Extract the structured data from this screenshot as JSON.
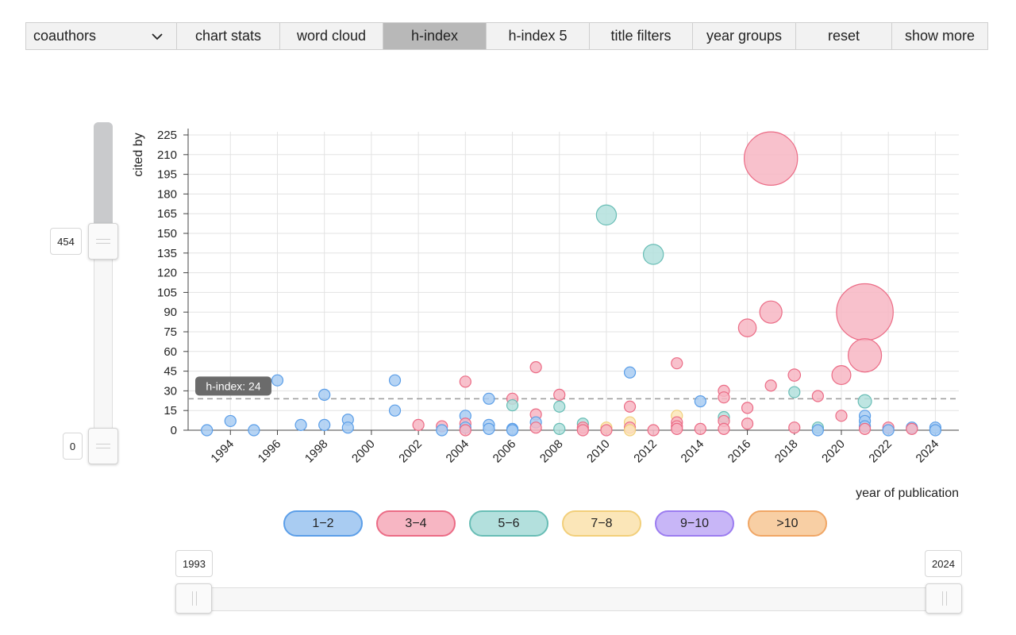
{
  "toolbar": {
    "select_value": "coauthors",
    "buttons": [
      {
        "label": "chart stats"
      },
      {
        "label": "word cloud"
      },
      {
        "label": "h-index",
        "active": true
      },
      {
        "label": "h-index 5"
      },
      {
        "label": "title filters"
      },
      {
        "label": "year groups"
      },
      {
        "label": "reset"
      },
      {
        "label": "show more"
      }
    ]
  },
  "y_slider": {
    "max_value": "454",
    "min_value": "0"
  },
  "x_slider": {
    "min_value": "1993",
    "max_value": "2024"
  },
  "legend": {
    "items": [
      {
        "label": "1−2",
        "fill": "#a9ccf2",
        "stroke": "#5b9ee8"
      },
      {
        "label": "3−4",
        "fill": "#f7b6c3",
        "stroke": "#eb6b85"
      },
      {
        "label": "5−6",
        "fill": "#b3e0dd",
        "stroke": "#68bdb5"
      },
      {
        "label": "7−8",
        "fill": "#fbe6b8",
        "stroke": "#f2cf7a"
      },
      {
        "label": "9−10",
        "fill": "#c8b6f7",
        "stroke": "#9b7cf0"
      },
      {
        "label": ">10",
        "fill": "#f8cfa4",
        "stroke": "#f0a665"
      }
    ]
  },
  "chart_data": {
    "type": "scatter",
    "xlabel": "year of publication",
    "ylabel": "cited by",
    "xlim": [
      1992.2,
      2025
    ],
    "ylim": [
      0,
      225
    ],
    "x_ticks": [
      1994,
      1996,
      1998,
      2000,
      2002,
      2004,
      2006,
      2008,
      2010,
      2012,
      2014,
      2016,
      2018,
      2020,
      2022,
      2024
    ],
    "y_ticks": [
      0,
      15,
      30,
      45,
      60,
      75,
      90,
      105,
      120,
      135,
      150,
      165,
      180,
      195,
      210,
      225
    ],
    "grid": true,
    "h_index": {
      "value": 24,
      "label": "h-index: 24"
    },
    "group_colors": {
      "1-2": {
        "fill": "#a9ccf2",
        "stroke": "#5b9ee8"
      },
      "3-4": {
        "fill": "#f7b6c3",
        "stroke": "#eb6b85"
      },
      "5-6": {
        "fill": "#b3e0dd",
        "stroke": "#68bdb5"
      },
      "7-8": {
        "fill": "#fbe6b8",
        "stroke": "#f2cf7a"
      },
      "9-10": {
        "fill": "#c8b6f7",
        "stroke": "#9b7cf0"
      },
      ">10": {
        "fill": "#f8cfa4",
        "stroke": "#f0a665"
      }
    },
    "points": [
      {
        "year": 1993,
        "cited": 0,
        "group": "1-2",
        "size": 1
      },
      {
        "year": 1994,
        "cited": 7,
        "group": "1-2",
        "size": 1
      },
      {
        "year": 1995,
        "cited": 0,
        "group": "1-2",
        "size": 1
      },
      {
        "year": 1996,
        "cited": 38,
        "group": "1-2",
        "size": 1
      },
      {
        "year": 1997,
        "cited": 4,
        "group": "1-2",
        "size": 1
      },
      {
        "year": 1998,
        "cited": 27,
        "group": "1-2",
        "size": 1
      },
      {
        "year": 1998,
        "cited": 4,
        "group": "1-2",
        "size": 1
      },
      {
        "year": 1999,
        "cited": 8,
        "group": "1-2",
        "size": 1
      },
      {
        "year": 1999,
        "cited": 2,
        "group": "1-2",
        "size": 1
      },
      {
        "year": 2001,
        "cited": 38,
        "group": "1-2",
        "size": 1
      },
      {
        "year": 2001,
        "cited": 15,
        "group": "1-2",
        "size": 1
      },
      {
        "year": 2002,
        "cited": 4,
        "group": "3-4",
        "size": 1
      },
      {
        "year": 2003,
        "cited": 3,
        "group": "3-4",
        "size": 1
      },
      {
        "year": 2003,
        "cited": 0,
        "group": "1-2",
        "size": 1
      },
      {
        "year": 2004,
        "cited": 37,
        "group": "3-4",
        "size": 1
      },
      {
        "year": 2004,
        "cited": 11,
        "group": "1-2",
        "size": 1
      },
      {
        "year": 2004,
        "cited": 5,
        "group": "3-4",
        "size": 1
      },
      {
        "year": 2004,
        "cited": 2,
        "group": "1-2",
        "size": 1
      },
      {
        "year": 2004,
        "cited": 0,
        "group": "3-4",
        "size": 1
      },
      {
        "year": 2005,
        "cited": 24,
        "group": "1-2",
        "size": 1
      },
      {
        "year": 2005,
        "cited": 4,
        "group": "1-2",
        "size": 1
      },
      {
        "year": 2005,
        "cited": 1,
        "group": "1-2",
        "size": 1
      },
      {
        "year": 2006,
        "cited": 24,
        "group": "3-4",
        "size": 1
      },
      {
        "year": 2006,
        "cited": 19,
        "group": "5-6",
        "size": 1
      },
      {
        "year": 2006,
        "cited": 1,
        "group": "1-2",
        "size": 1
      },
      {
        "year": 2006,
        "cited": 0,
        "group": "1-2",
        "size": 1
      },
      {
        "year": 2007,
        "cited": 48,
        "group": "3-4",
        "size": 1
      },
      {
        "year": 2007,
        "cited": 12,
        "group": "3-4",
        "size": 1
      },
      {
        "year": 2007,
        "cited": 6,
        "group": "1-2",
        "size": 1
      },
      {
        "year": 2007,
        "cited": 2,
        "group": "3-4",
        "size": 1
      },
      {
        "year": 2008,
        "cited": 27,
        "group": "3-4",
        "size": 1
      },
      {
        "year": 2008,
        "cited": 18,
        "group": "5-6",
        "size": 1
      },
      {
        "year": 2008,
        "cited": 1,
        "group": "5-6",
        "size": 1
      },
      {
        "year": 2009,
        "cited": 5,
        "group": "5-6",
        "size": 1
      },
      {
        "year": 2009,
        "cited": 2,
        "group": "3-4",
        "size": 1
      },
      {
        "year": 2009,
        "cited": 0,
        "group": "3-4",
        "size": 1
      },
      {
        "year": 2010,
        "cited": 164,
        "group": "5-6",
        "size": 1.8
      },
      {
        "year": 2010,
        "cited": 2,
        "group": "7-8",
        "size": 1
      },
      {
        "year": 2010,
        "cited": 0,
        "group": "3-4",
        "size": 1
      },
      {
        "year": 2011,
        "cited": 44,
        "group": "1-2",
        "size": 1
      },
      {
        "year": 2011,
        "cited": 18,
        "group": "3-4",
        "size": 1
      },
      {
        "year": 2011,
        "cited": 6,
        "group": "7-8",
        "size": 1
      },
      {
        "year": 2011,
        "cited": 2,
        "group": "3-4",
        "size": 1
      },
      {
        "year": 2011,
        "cited": 0,
        "group": "7-8",
        "size": 1
      },
      {
        "year": 2012,
        "cited": 134,
        "group": "5-6",
        "size": 1.8
      },
      {
        "year": 2012,
        "cited": 0,
        "group": "3-4",
        "size": 1
      },
      {
        "year": 2013,
        "cited": 51,
        "group": "3-4",
        "size": 1
      },
      {
        "year": 2013,
        "cited": 11,
        "group": "7-8",
        "size": 1
      },
      {
        "year": 2013,
        "cited": 6,
        "group": "3-4",
        "size": 1
      },
      {
        "year": 2013,
        "cited": 3,
        "group": "3-4",
        "size": 1
      },
      {
        "year": 2013,
        "cited": 1,
        "group": "3-4",
        "size": 1
      },
      {
        "year": 2014,
        "cited": 22,
        "group": "1-2",
        "size": 1
      },
      {
        "year": 2014,
        "cited": 1,
        "group": "3-4",
        "size": 1
      },
      {
        "year": 2015,
        "cited": 30,
        "group": "3-4",
        "size": 1
      },
      {
        "year": 2015,
        "cited": 25,
        "group": "3-4",
        "size": 1
      },
      {
        "year": 2015,
        "cited": 10,
        "group": "5-6",
        "size": 1
      },
      {
        "year": 2015,
        "cited": 7,
        "group": "3-4",
        "size": 1
      },
      {
        "year": 2015,
        "cited": 1,
        "group": "3-4",
        "size": 1
      },
      {
        "year": 2016,
        "cited": 78,
        "group": "3-4",
        "size": 1.6
      },
      {
        "year": 2016,
        "cited": 17,
        "group": "3-4",
        "size": 1
      },
      {
        "year": 2016,
        "cited": 5,
        "group": "3-4",
        "size": 1
      },
      {
        "year": 2017,
        "cited": 207,
        "group": "3-4",
        "size": 4.8
      },
      {
        "year": 2017,
        "cited": 90,
        "group": "3-4",
        "size": 2
      },
      {
        "year": 2017,
        "cited": 34,
        "group": "3-4",
        "size": 1
      },
      {
        "year": 2018,
        "cited": 42,
        "group": "3-4",
        "size": 1.1
      },
      {
        "year": 2018,
        "cited": 29,
        "group": "5-6",
        "size": 1
      },
      {
        "year": 2018,
        "cited": 2,
        "group": "3-4",
        "size": 1
      },
      {
        "year": 2019,
        "cited": 26,
        "group": "3-4",
        "size": 1
      },
      {
        "year": 2019,
        "cited": 2,
        "group": "5-6",
        "size": 1
      },
      {
        "year": 2019,
        "cited": 0,
        "group": "1-2",
        "size": 1
      },
      {
        "year": 2020,
        "cited": 42,
        "group": "3-4",
        "size": 1.7
      },
      {
        "year": 2020,
        "cited": 11,
        "group": "3-4",
        "size": 1
      },
      {
        "year": 2021,
        "cited": 90,
        "group": "3-4",
        "size": 5.1
      },
      {
        "year": 2021,
        "cited": 57,
        "group": "3-4",
        "size": 3
      },
      {
        "year": 2021,
        "cited": 22,
        "group": "5-6",
        "size": 1.2
      },
      {
        "year": 2021,
        "cited": 11,
        "group": "1-2",
        "size": 1
      },
      {
        "year": 2021,
        "cited": 7,
        "group": "1-2",
        "size": 1
      },
      {
        "year": 2021,
        "cited": 3,
        "group": "1-2",
        "size": 1
      },
      {
        "year": 2021,
        "cited": 1,
        "group": "3-4",
        "size": 1
      },
      {
        "year": 2022,
        "cited": 2,
        "group": "3-4",
        "size": 1
      },
      {
        "year": 2022,
        "cited": 0,
        "group": "1-2",
        "size": 1
      },
      {
        "year": 2023,
        "cited": 2,
        "group": "1-2",
        "size": 1
      },
      {
        "year": 2023,
        "cited": 1,
        "group": "3-4",
        "size": 1
      },
      {
        "year": 2024,
        "cited": 2,
        "group": "1-2",
        "size": 1
      },
      {
        "year": 2024,
        "cited": 0,
        "group": "1-2",
        "size": 1
      }
    ]
  }
}
